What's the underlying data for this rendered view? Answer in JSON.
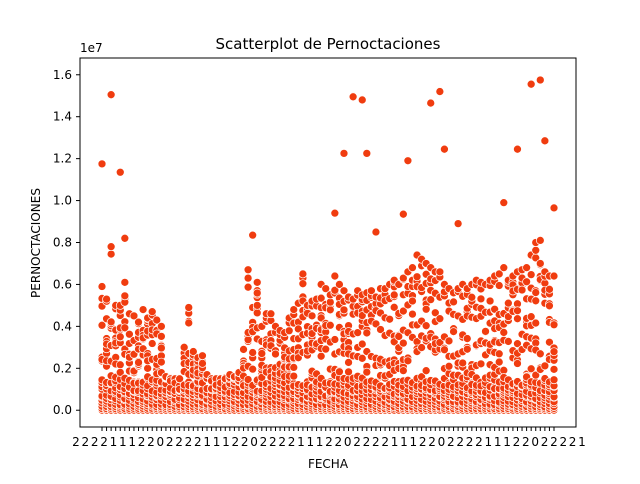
{
  "chart_data": {
    "type": "scatter",
    "title": "Scatterplot de Pernoctaciones",
    "xlabel": "FECHA",
    "ylabel": "PERNOCTACIONES",
    "y_offset_label": "1e7",
    "y_scale": 10000000,
    "ylim": [
      -0.08,
      1.68
    ],
    "yticks": [
      0.0,
      0.2,
      0.4,
      0.6,
      0.8,
      1.0,
      1.2,
      1.4,
      1.6
    ],
    "ytick_labels": [
      "0.0",
      "0.2",
      "0.4",
      "0.6",
      "0.8",
      "1.0",
      "1.2",
      "1.4",
      "1.6"
    ],
    "x_axis_kind": "categorical",
    "x_tick_labels_note": "dense overlapping date labels, illegible",
    "x_tick_labels_legible": [
      "2",
      "2",
      "2",
      "2",
      "1",
      "1",
      "1",
      "2",
      "2",
      "0"
    ],
    "marker_color": "#f03c0f",
    "marker_edge_color": "#ffffff",
    "grid": false,
    "legend": "none",
    "num_periods": 100,
    "notable_points": [
      {
        "period": 0,
        "y": 1.175
      },
      {
        "period": 2,
        "y": 1.505
      },
      {
        "period": 4,
        "y": 1.135
      },
      {
        "period": 53,
        "y": 1.225
      },
      {
        "period": 55,
        "y": 1.495
      },
      {
        "period": 57,
        "y": 1.48
      },
      {
        "period": 58,
        "y": 1.225
      },
      {
        "period": 72,
        "y": 1.465
      },
      {
        "period": 74,
        "y": 1.52
      },
      {
        "period": 67,
        "y": 1.19
      },
      {
        "period": 75,
        "y": 1.245
      },
      {
        "period": 91,
        "y": 1.245
      },
      {
        "period": 94,
        "y": 1.555
      },
      {
        "period": 96,
        "y": 1.575
      },
      {
        "period": 97,
        "y": 1.285
      },
      {
        "period": 99,
        "y": 0.965
      },
      {
        "period": 51,
        "y": 0.94
      },
      {
        "period": 66,
        "y": 0.935
      },
      {
        "period": 88,
        "y": 0.99
      },
      {
        "period": 78,
        "y": 0.89
      },
      {
        "period": 60,
        "y": 0.85
      },
      {
        "period": 33,
        "y": 0.835
      },
      {
        "period": 2,
        "y": 0.78
      },
      {
        "period": 5,
        "y": 0.82
      },
      {
        "period": 96,
        "y": 0.81
      }
    ],
    "upper_envelope": [
      0.59,
      0.53,
      0.78,
      0.5,
      0.5,
      0.61,
      0.46,
      0.45,
      0.42,
      0.48,
      0.44,
      0.47,
      0.43,
      0.4,
      0.16,
      0.14,
      0.13,
      0.1,
      0.3,
      0.49,
      0.28,
      0.25,
      0.26,
      0.17,
      0.14,
      0.12,
      0.13,
      0.11,
      0.17,
      0.16,
      0.18,
      0.29,
      0.67,
      0.49,
      0.61,
      0.4,
      0.46,
      0.46,
      0.4,
      0.38,
      0.37,
      0.44,
      0.48,
      0.51,
      0.65,
      0.5,
      0.52,
      0.53,
      0.6,
      0.58,
      0.55,
      0.64,
      0.6,
      0.57,
      0.54,
      0.53,
      0.57,
      0.55,
      0.56,
      0.57,
      0.54,
      0.58,
      0.58,
      0.6,
      0.62,
      0.6,
      0.63,
      0.66,
      0.68,
      0.74,
      0.72,
      0.7,
      0.68,
      0.66,
      0.66,
      0.6,
      0.58,
      0.56,
      0.58,
      0.6,
      0.58,
      0.6,
      0.62,
      0.61,
      0.6,
      0.62,
      0.64,
      0.65,
      0.68,
      0.62,
      0.64,
      0.66,
      0.67,
      0.68,
      0.74,
      0.8,
      0.7,
      0.66,
      0.64,
      0.64
    ],
    "cluster_density": "dense concentration of points between 0.0 and 0.15 for every period"
  }
}
